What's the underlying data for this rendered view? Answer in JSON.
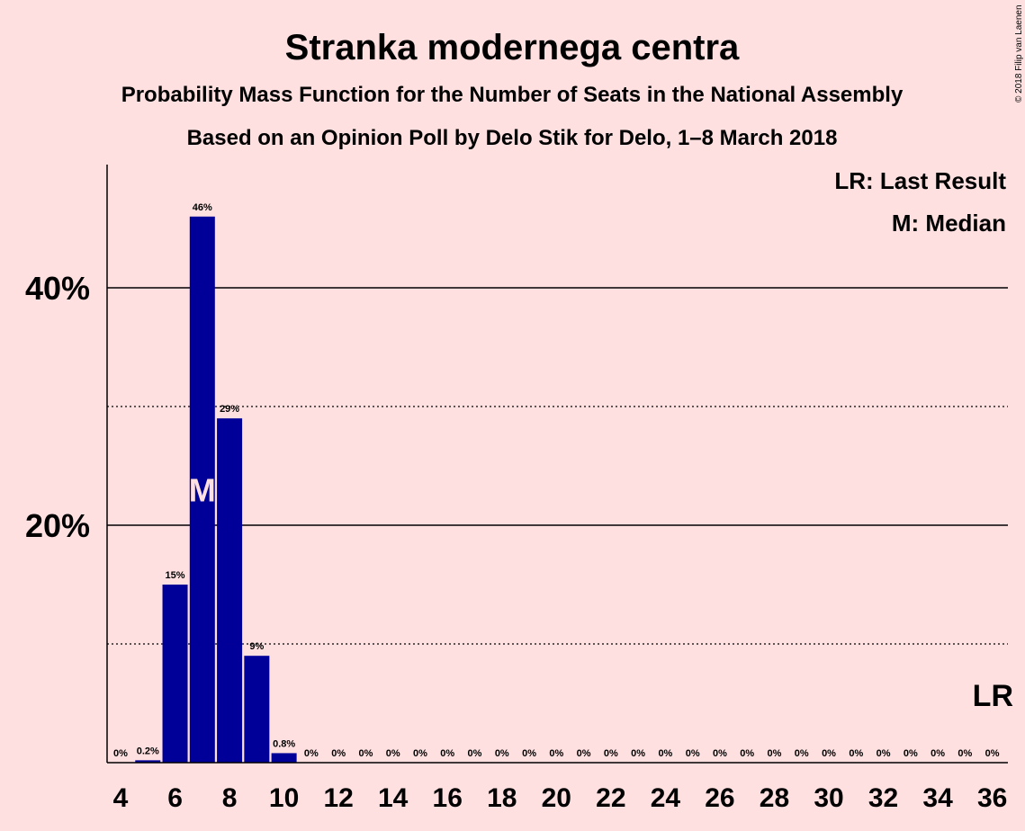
{
  "header": {
    "title": "Stranka modernega centra",
    "subtitle1": "Probability Mass Function for the Number of Seats in the National Assembly",
    "subtitle2": "Based on an Opinion Poll by Delo Stik for Delo, 1–8 March 2018"
  },
  "legend": {
    "last_result": "LR: Last Result",
    "median": "M: Median"
  },
  "copyright": "© 2018 Filip van Laenen",
  "markers": {
    "median_label": "M",
    "median_seat": 7,
    "last_result_label": "LR",
    "last_result_seat": 36
  },
  "colors": {
    "background": "#FFE0E0",
    "bar": "#000099"
  },
  "chart_data": {
    "type": "bar",
    "categories": [
      4,
      5,
      6,
      7,
      8,
      9,
      10,
      11,
      12,
      13,
      14,
      15,
      16,
      17,
      18,
      19,
      20,
      21,
      22,
      23,
      24,
      25,
      26,
      27,
      28,
      29,
      30,
      31,
      32,
      33,
      34,
      35,
      36
    ],
    "values": [
      0,
      0.2,
      15,
      46,
      29,
      9,
      0.8,
      0,
      0,
      0,
      0,
      0,
      0,
      0,
      0,
      0,
      0,
      0,
      0,
      0,
      0,
      0,
      0,
      0,
      0,
      0,
      0,
      0,
      0,
      0,
      0,
      0,
      0
    ],
    "data_labels": [
      "0%",
      "0.2%",
      "15%",
      "46%",
      "29%",
      "9%",
      "0.8%",
      "0%",
      "0%",
      "0%",
      "0%",
      "0%",
      "0%",
      "0%",
      "0%",
      "0%",
      "0%",
      "0%",
      "0%",
      "0%",
      "0%",
      "0%",
      "0%",
      "0%",
      "0%",
      "0%",
      "0%",
      "0%",
      "0%",
      "0%",
      "0%",
      "0%",
      "0%"
    ],
    "x_tick_labels": [
      "4",
      "6",
      "8",
      "10",
      "12",
      "14",
      "16",
      "18",
      "20",
      "22",
      "24",
      "26",
      "28",
      "30",
      "32",
      "34",
      "36"
    ],
    "y_tick_labels": [
      "20%",
      "40%"
    ],
    "ylim": [
      0,
      50
    ],
    "grid": {
      "solid": [
        20,
        40
      ],
      "dotted": [
        10,
        30
      ]
    }
  }
}
